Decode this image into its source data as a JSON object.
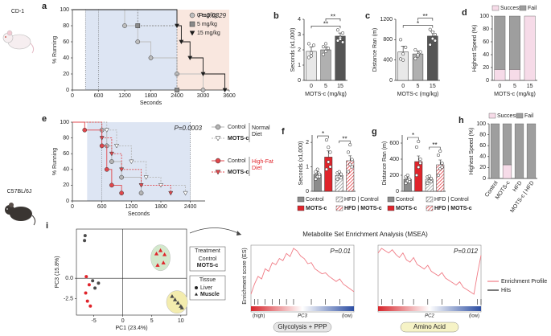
{
  "strains": [
    "CD-1",
    "C57BL/6J"
  ],
  "msea_title": "Metabolite Set Enrichment Analysis (MSEA)",
  "msea_legend": [
    "Enrichment Profile",
    "Hits"
  ],
  "chart_data": [
    {
      "type": "line",
      "panel": "a",
      "step": true,
      "annotation": "P=0.0329",
      "xlabel": "Seconds",
      "ylabel": "% Running",
      "xlim": [
        0,
        3600
      ],
      "xticks": [
        0,
        600,
        1200,
        1800,
        2400,
        3000,
        3600
      ],
      "ylim": [
        0,
        100
      ],
      "yticks": [
        0,
        20,
        40,
        60,
        80,
        100
      ],
      "shaded": [
        {
          "range": [
            300,
            2400
          ],
          "color": "#dde5f3"
        },
        {
          "range": [
            2400,
            3600
          ],
          "color": "#f9e7df"
        }
      ],
      "vlines": [
        300,
        600
      ],
      "series": [
        {
          "name": "0 mg/kg",
          "color": "#bdbdbd",
          "marker": "circle",
          "x": [
            0,
            1200,
            1500,
            1800,
            2400,
            3000
          ],
          "values": [
            100,
            80,
            60,
            40,
            20,
            0
          ]
        },
        {
          "name": "5 mg/kg",
          "color": "#8a8a8a",
          "marker": "square",
          "dash": true,
          "x": [
            0,
            1500,
            2400
          ],
          "values": [
            100,
            80,
            0
          ]
        },
        {
          "name": "15 mg/kg",
          "color": "#1a1a1a",
          "marker": "tri-down",
          "x": [
            0,
            2400,
            2500,
            2700,
            3000,
            3500
          ],
          "values": [
            100,
            80,
            60,
            40,
            20,
            0
          ]
        }
      ]
    },
    {
      "type": "bar",
      "panel": "b",
      "ylabel": "Seconds (x1,000)",
      "xlabel": "MOTS-c (mg/kg)",
      "categories": [
        "0",
        "5",
        "15"
      ],
      "values": [
        1.9,
        2.0,
        2.9
      ],
      "errors": [
        0.3,
        0.2,
        0.2
      ],
      "colors": [
        "#e8e8e8",
        "#b0b0b0",
        "#555555"
      ],
      "points": [
        [
          1.5,
          1.8,
          2.3,
          2.4,
          1.6
        ],
        [
          1.7,
          1.9,
          2.1,
          2.2,
          2.4
        ],
        [
          2.6,
          2.8,
          3.1,
          3.3,
          2.7,
          2.5
        ]
      ],
      "ylim": [
        0,
        4
      ],
      "yticks": [
        0,
        1,
        2,
        3,
        4
      ],
      "significance": [
        {
          "pair": [
            0,
            2
          ],
          "label": "**"
        },
        {
          "pair": [
            1,
            2
          ],
          "label": "**"
        }
      ]
    },
    {
      "type": "bar",
      "panel": "c",
      "ylabel": "Distance Ran (m)",
      "xlabel": "MOTS-c (mg/kg)",
      "categories": [
        "0",
        "5",
        "15"
      ],
      "values": [
        560,
        520,
        870
      ],
      "errors": [
        110,
        60,
        90
      ],
      "colors": [
        "#e8e8e8",
        "#b0b0b0",
        "#555555"
      ],
      "points": [
        [
          420,
          520,
          650,
          800,
          400
        ],
        [
          430,
          480,
          560,
          600,
          500
        ],
        [
          700,
          820,
          900,
          1000,
          950,
          780
        ]
      ],
      "ylim": [
        0,
        1200
      ],
      "yticks": [
        0,
        400,
        800,
        1200
      ],
      "significance": [
        {
          "pair": [
            0,
            2
          ],
          "label": "*"
        },
        {
          "pair": [
            1,
            2
          ],
          "label": "**"
        }
      ]
    },
    {
      "type": "stacked",
      "panel": "d",
      "ylabel": "Highest Speed (%)",
      "xlabel": "MOTS-c (mg/kg)",
      "categories": [
        "0",
        "5",
        "15"
      ],
      "series": [
        {
          "name": "Success",
          "color": "#f6dbe8",
          "values": [
            17,
            17,
            100
          ]
        },
        {
          "name": "Fail",
          "color": "#9e9e9e",
          "values": [
            83,
            83,
            0
          ]
        }
      ],
      "ylim": [
        0,
        100
      ],
      "yticks": [
        0,
        20,
        40,
        60,
        80,
        100
      ]
    },
    {
      "type": "line",
      "panel": "e",
      "step": true,
      "annotation": "P=0.0003",
      "xlabel": "Seconds",
      "ylabel": "% Running",
      "xlim": [
        0,
        2700
      ],
      "xticks": [
        0,
        600,
        1200,
        1800,
        2400
      ],
      "ylim": [
        0,
        100
      ],
      "yticks": [
        0,
        20,
        40,
        60,
        80,
        100
      ],
      "shaded": [
        {
          "range": [
            300,
            2400
          ],
          "color": "#dde5f3"
        }
      ],
      "vlines": [
        600,
        2400
      ],
      "series": [
        {
          "name": "Control",
          "color": "#b5b5b5",
          "marker": "circle",
          "x": [
            0,
            600,
            700,
            800,
            1000,
            1400
          ],
          "values": [
            100,
            90,
            70,
            50,
            30,
            10
          ]
        },
        {
          "name": "MOTS-c",
          "color": "#b5b5b5",
          "marker_fill": "#ffffff",
          "marker": "tri-down",
          "dash": true,
          "x": [
            0,
            700,
            900,
            1200,
            1500,
            1800,
            2300
          ],
          "values": [
            100,
            90,
            70,
            50,
            30,
            20,
            10
          ]
        },
        {
          "name": "Control",
          "color": "#e0474c",
          "marker": "circle",
          "x": [
            0,
            250,
            600,
            700,
            800,
            1000
          ],
          "values": [
            100,
            90,
            70,
            40,
            20,
            10
          ]
        },
        {
          "name": "MOTS-c",
          "color": "#e0474c",
          "marker": "tri-down",
          "dash": true,
          "x": [
            0,
            600,
            800,
            1000,
            1400,
            2000
          ],
          "values": [
            100,
            80,
            60,
            40,
            20,
            10
          ]
        }
      ],
      "groups": [
        {
          "label": "Normal Diet",
          "series": [
            0,
            1
          ]
        },
        {
          "label": "High-Fat Diet",
          "series": [
            2,
            3
          ]
        }
      ]
    },
    {
      "type": "bar",
      "panel": "f",
      "ylabel": "Seconds (x1,000)",
      "categories": [
        null,
        null,
        null,
        null
      ],
      "legend": [
        "Control",
        "MOTS-c",
        "HFD | Control",
        "HFD | MOTS-c"
      ],
      "values": [
        0.7,
        1.4,
        0.65,
        1.25
      ],
      "errors": [
        0.1,
        0.25,
        0.1,
        0.2
      ],
      "colors": [
        "#8c8c8c",
        "#e0242b",
        "#8c8c8c",
        "#e0242b"
      ],
      "hatch": [
        false,
        false,
        true,
        true
      ],
      "points": [
        [
          0.5,
          0.6,
          0.7,
          0.8,
          0.9,
          0.6
        ],
        [
          0.9,
          1.2,
          1.6,
          2.1,
          1.8,
          1.0
        ],
        [
          0.5,
          0.6,
          0.7,
          0.75,
          0.8,
          0.55
        ],
        [
          0.8,
          1.1,
          1.3,
          1.6,
          1.9,
          1.0
        ]
      ],
      "ylim": [
        0,
        2.3
      ],
      "yticks": [
        0,
        1,
        2
      ],
      "significance": [
        {
          "pair": [
            2,
            3
          ],
          "label": "**"
        },
        {
          "pair": [
            0,
            1
          ],
          "label": "*"
        }
      ]
    },
    {
      "type": "bar",
      "panel": "g",
      "ylabel": "Distance Ran (m)",
      "categories": [
        null,
        null,
        null,
        null
      ],
      "legend": [
        "Control",
        "MOTS-c",
        "HFD | Control",
        "HFD | MOTS-c"
      ],
      "values": [
        150,
        370,
        150,
        330
      ],
      "errors": [
        30,
        70,
        30,
        60
      ],
      "colors": [
        "#8c8c8c",
        "#e0242b",
        "#8c8c8c",
        "#e0242b"
      ],
      "hatch": [
        false,
        false,
        true,
        true
      ],
      "points": [
        [
          100,
          130,
          150,
          180,
          200,
          120
        ],
        [
          200,
          300,
          400,
          550,
          620,
          350
        ],
        [
          100,
          130,
          160,
          180,
          190,
          120
        ],
        [
          200,
          280,
          350,
          450,
          500,
          300
        ]
      ],
      "ylim": [
        0,
        700
      ],
      "yticks": [
        0,
        200,
        400,
        600
      ],
      "significance": [
        {
          "pair": [
            2,
            3
          ],
          "label": "**"
        },
        {
          "pair": [
            0,
            1
          ],
          "label": "*"
        }
      ]
    },
    {
      "type": "stacked",
      "panel": "h",
      "ylabel": "Highest Speed (%)",
      "categories": [
        "Control",
        "MOTS-c",
        "HFD",
        "MOTS-c | HFD"
      ],
      "series": [
        {
          "name": "Success",
          "color": "#f6dbe8",
          "values": [
            0,
            25,
            0,
            0
          ]
        },
        {
          "name": "Fail",
          "color": "#9e9e9e",
          "values": [
            100,
            75,
            100,
            100
          ]
        }
      ],
      "ylim": [
        0,
        100
      ],
      "yticks": [
        0,
        20,
        40,
        60,
        80,
        100
      ]
    },
    {
      "type": "scatter",
      "panel": "i",
      "xlabel": "PC1 (23.4%)",
      "ylabel": "PC3 (15.8%)",
      "xlim": [
        -8,
        11
      ],
      "xticks": [
        -5,
        0,
        5,
        10
      ],
      "ylim": [
        -4.5,
        6
      ],
      "yticks": [
        -2.5,
        {
          "value": 0,
          "label": "0.0"
        }
      ],
      "treatment": {
        "title": "Treatment",
        "labels": [
          "Control",
          "MOTS-c"
        ],
        "colors": [
          "#4a4a4a",
          "#e0242b"
        ]
      },
      "tissue": {
        "title": "Tissue",
        "labels": [
          "Liver",
          "Muscle"
        ],
        "markers": [
          "circle",
          "triangle"
        ]
      },
      "series": [
        {
          "treatment": 0,
          "tissue": 0,
          "x": [
            -6.5,
            -6.6,
            -5.2,
            -4.8,
            -4.2
          ],
          "values": [
            5.2,
            4.6,
            -0.3,
            -1.2,
            -0.6
          ]
        },
        {
          "treatment": 1,
          "tissue": 0,
          "x": [
            -6.3,
            -5.8,
            -6.4,
            -6.1,
            -5.6
          ],
          "values": [
            0.2,
            -0.8,
            -1.8,
            -2.8,
            -3.4
          ]
        },
        {
          "treatment": 0,
          "tissue": 1,
          "x": [
            8.5,
            9.0,
            9.5,
            10.0,
            10.2
          ],
          "values": [
            -2.2,
            -2.6,
            -3.0,
            -3.4,
            -3.6
          ],
          "region_color": "#f3ecae"
        },
        {
          "treatment": 1,
          "tissue": 1,
          "x": [
            5.8,
            6.5,
            7.2,
            6.0,
            7.0
          ],
          "values": [
            3.0,
            3.4,
            2.9,
            1.6,
            1.9
          ],
          "region_color": "#d3e8cc"
        }
      ]
    },
    {
      "type": "enrichment",
      "ylabel": "Enrichment score (ES)",
      "annotation": "P=0.01",
      "xlabel": "PC3",
      "ends": [
        "(high)",
        "(low)"
      ],
      "set_label": "Glycolysis + PPP",
      "set_color": "#e6e6e6",
      "color": "#f07b85",
      "hit_color": "#222222",
      "values": [
        0,
        0.2,
        0.35,
        0.3,
        0.5,
        0.45,
        0.62,
        0.58,
        0.7,
        0.66,
        0.8,
        0.74,
        0.9,
        0.85,
        0.75,
        0.7,
        0.6,
        0.62,
        0.5,
        0.45,
        0.4,
        0.42,
        0.35,
        0.3,
        0.25,
        0.3,
        0.2,
        0.15,
        0.1,
        0.05
      ],
      "hits": [
        1,
        2,
        4,
        6,
        8,
        10,
        12,
        17,
        21,
        25
      ]
    },
    {
      "type": "enrichment",
      "annotation": "P=0.012",
      "xlabel": "PC2",
      "ends": [
        null,
        "(low)"
      ],
      "set_label": "Amino Acid",
      "set_color": "#f6f3c6",
      "color": "#f07b85",
      "hit_color": "#222222",
      "values": [
        0.05,
        0.15,
        0.1,
        0.05,
        0.12,
        0.02,
        -0.05,
        0.05,
        -0.1,
        -0.15,
        -0.05,
        -0.2,
        -0.25,
        -0.3,
        -0.22,
        -0.35,
        -0.4,
        -0.45,
        -0.38,
        -0.5,
        -0.55,
        -0.6,
        -0.65,
        -0.58,
        -0.7,
        -0.75,
        -0.8,
        -0.85,
        -0.4,
        0.0
      ],
      "hits": [
        1,
        4,
        7,
        10,
        14,
        18,
        23,
        28,
        29
      ]
    }
  ]
}
